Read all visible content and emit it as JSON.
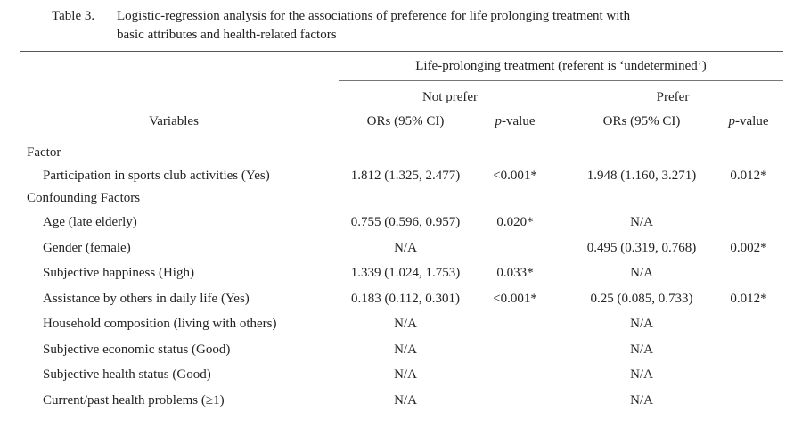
{
  "table": {
    "number": "Table 3.",
    "caption_line1": "Logistic-regression analysis for the associations of preference for life prolonging treatment with",
    "caption_line2": "basic attributes and health-related factors",
    "spanner": "Life-prolonging treatment (referent is ‘undetermined’)",
    "group_not_prefer": "Not prefer",
    "group_prefer": "Prefer",
    "col_variables": "Variables",
    "col_or": "ORs (95% CI)",
    "col_p_letter": "p",
    "col_p_rest": "-value",
    "sections": [
      {
        "label": "Factor"
      },
      {
        "label": "Confounding Factors"
      }
    ],
    "rows": [
      {
        "variable": "Participation in sports club activities (Yes)",
        "np_or": "1.812 (1.325, 2.477)",
        "np_p": "<0.001*",
        "p_or": "1.948 (1.160, 3.271)",
        "p_p": "0.012*"
      },
      {
        "variable": "Age (late elderly)",
        "np_or": "0.755 (0.596, 0.957)",
        "np_p": "0.020*",
        "p_or": "N/A",
        "p_p": ""
      },
      {
        "variable": "Gender (female)",
        "np_or": "N/A",
        "np_p": "",
        "p_or": "0.495 (0.319, 0.768)",
        "p_p": "0.002*"
      },
      {
        "variable": "Subjective happiness (High)",
        "np_or": "1.339 (1.024, 1.753)",
        "np_p": "0.033*",
        "p_or": "N/A",
        "p_p": ""
      },
      {
        "variable": "Assistance by others in daily life (Yes)",
        "np_or": "0.183 (0.112, 0.301)",
        "np_p": "<0.001*",
        "p_or": "0.25 (0.085, 0.733)",
        "p_p": "0.012*"
      },
      {
        "variable": "Household composition (living with others)",
        "np_or": "N/A",
        "np_p": "",
        "p_or": "N/A",
        "p_p": ""
      },
      {
        "variable": "Subjective economic status (Good)",
        "np_or": "N/A",
        "np_p": "",
        "p_or": "N/A",
        "p_p": ""
      },
      {
        "variable": "Subjective health status (Good)",
        "np_or": "N/A",
        "np_p": "",
        "p_or": "N/A",
        "p_p": ""
      },
      {
        "variable": "Current/past health problems (≥1)",
        "np_or": "N/A",
        "np_p": "",
        "p_or": "N/A",
        "p_p": ""
      }
    ]
  }
}
